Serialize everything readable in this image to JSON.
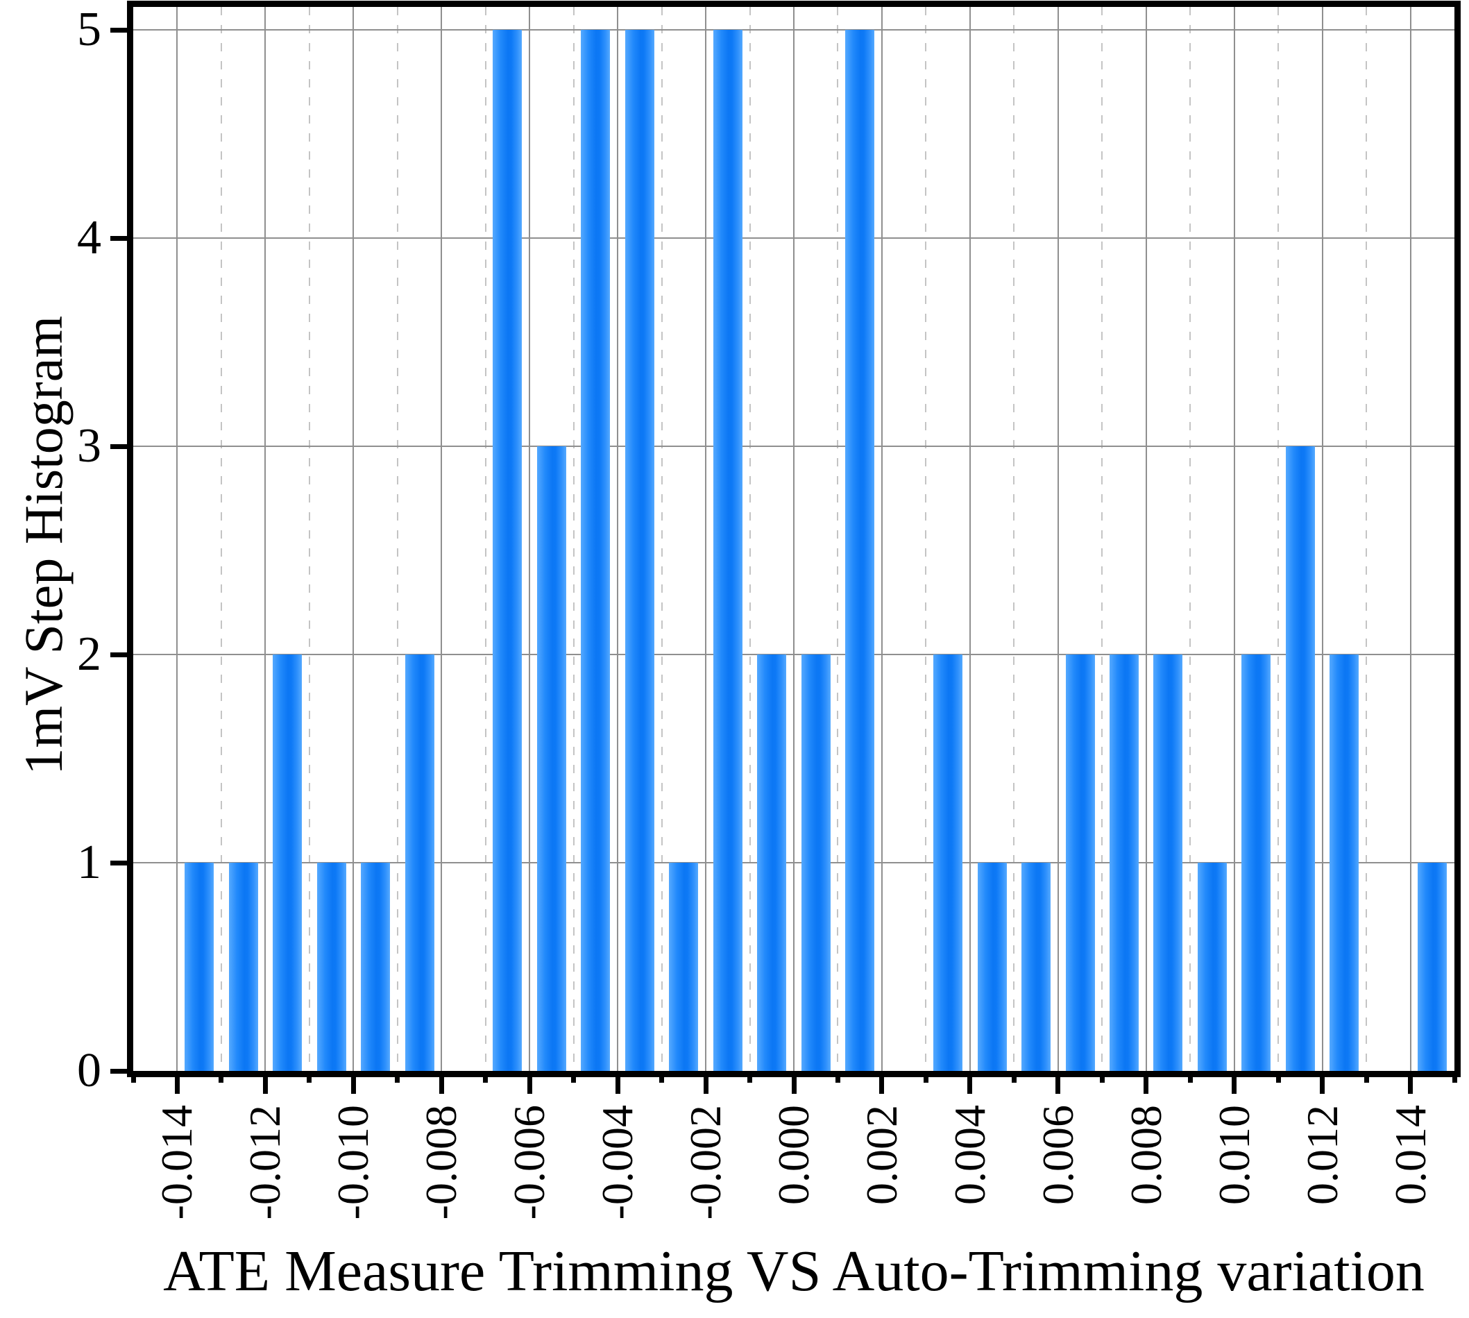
{
  "chart_data": {
    "type": "bar",
    "title": "",
    "xlabel": "ATE Measure Trimming VS Auto-Trimming variation",
    "ylabel": "1mV Step Histogram",
    "xlim": [
      -0.015,
      0.015
    ],
    "ylim": [
      0,
      5
    ],
    "grid": {
      "horizontal": "solid",
      "vertical_major": "solid",
      "vertical_minor": "dashed",
      "legend": "none"
    },
    "bin_width": 0.001,
    "y_ticks": [
      0,
      1,
      2,
      3,
      4,
      5
    ],
    "y_tick_labels": [
      "0",
      "1",
      "2",
      "3",
      "4",
      "5"
    ],
    "x_tick_values": [
      -0.014,
      -0.012,
      -0.01,
      -0.008,
      -0.006,
      -0.004,
      -0.002,
      0.0,
      0.002,
      0.004,
      0.006,
      0.008,
      0.01,
      0.012,
      0.014
    ],
    "x_tick_labels": [
      "-0.014",
      "-0.012",
      "-0.010",
      "-0.008",
      "-0.006",
      "-0.004",
      "-0.002",
      "0.000",
      "0.002",
      "0.004",
      "0.006",
      "0.008",
      "0.010",
      "0.012",
      "0.014"
    ],
    "x_minor_tick_values": [
      -0.015,
      -0.013,
      -0.011,
      -0.009,
      -0.007,
      -0.005,
      -0.003,
      -0.001,
      0.001,
      0.003,
      0.005,
      0.007,
      0.009,
      0.011,
      0.013,
      0.015
    ],
    "bars": [
      {
        "center": -0.0135,
        "count": 1
      },
      {
        "center": -0.0125,
        "count": 1
      },
      {
        "center": -0.0115,
        "count": 2
      },
      {
        "center": -0.0105,
        "count": 1
      },
      {
        "center": -0.0095,
        "count": 1
      },
      {
        "center": -0.0085,
        "count": 2
      },
      {
        "center": -0.0075,
        "count": 0
      },
      {
        "center": -0.0065,
        "count": 5
      },
      {
        "center": -0.0055,
        "count": 3
      },
      {
        "center": -0.0045,
        "count": 5
      },
      {
        "center": -0.0035,
        "count": 5
      },
      {
        "center": -0.0025,
        "count": 1
      },
      {
        "center": -0.0015,
        "count": 5
      },
      {
        "center": -0.0005,
        "count": 2
      },
      {
        "center": 0.0005,
        "count": 2
      },
      {
        "center": 0.0015,
        "count": 5
      },
      {
        "center": 0.0025,
        "count": 0
      },
      {
        "center": 0.0035,
        "count": 2
      },
      {
        "center": 0.0045,
        "count": 1
      },
      {
        "center": 0.0055,
        "count": 1
      },
      {
        "center": 0.0065,
        "count": 2
      },
      {
        "center": 0.0075,
        "count": 2
      },
      {
        "center": 0.0085,
        "count": 2
      },
      {
        "center": 0.0095,
        "count": 1
      },
      {
        "center": 0.0105,
        "count": 2
      },
      {
        "center": 0.0115,
        "count": 3
      },
      {
        "center": 0.0125,
        "count": 2
      },
      {
        "center": 0.0135,
        "count": 0
      },
      {
        "center": 0.0145,
        "count": 1
      }
    ],
    "colors": {
      "bar_edge_light": "#55a9ff",
      "bar_core_dark": "#0c77f4",
      "grid_major": "#8f8f8f",
      "grid_minor": "#c4c4c4",
      "axis": "#000000",
      "background": "#ffffff"
    }
  }
}
